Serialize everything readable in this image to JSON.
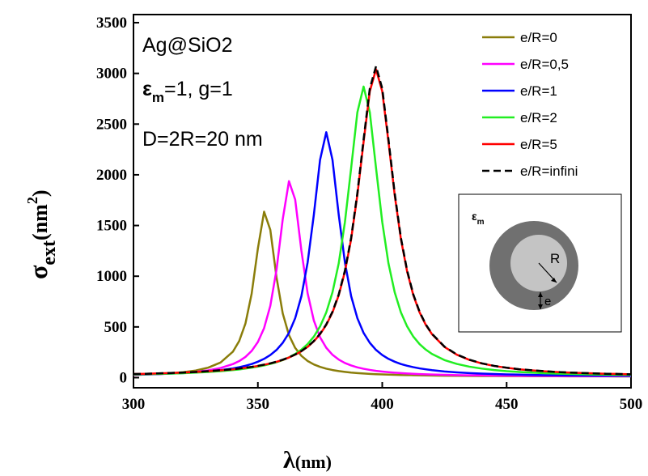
{
  "chart_data": {
    "type": "line",
    "x": [
      300,
      305,
      310,
      315,
      320,
      325,
      330,
      335,
      340,
      342.5,
      345,
      347.5,
      350,
      352.5,
      355,
      357.5,
      360,
      362.5,
      365,
      367.5,
      370,
      372.5,
      375,
      377.5,
      380,
      382.5,
      385,
      387.5,
      390,
      392.5,
      395,
      397.5,
      400,
      402.5,
      405,
      407.5,
      410,
      412.5,
      415,
      417.5,
      420,
      425,
      430,
      435,
      440,
      445,
      450,
      455,
      460,
      465,
      470,
      475,
      480,
      485,
      490,
      495,
      500
    ],
    "series": [
      {
        "name": "e/R=0",
        "color": "#8a7d0a",
        "values": [
          27,
          31,
          36,
          43,
          54,
          70,
          98,
          149,
          257,
          361,
          533,
          827,
          1272,
          1636,
          1457,
          989,
          633,
          419,
          293,
          215,
          164,
          130,
          106,
          88,
          75,
          65,
          57,
          50,
          45,
          41,
          37,
          34,
          32,
          30,
          28,
          26,
          25,
          24,
          23,
          22,
          21,
          19,
          18,
          17,
          16,
          16,
          15,
          15,
          14,
          14,
          14,
          13,
          13,
          13,
          13,
          12,
          12
        ]
      },
      {
        "name": "e/R=0,5",
        "color": "#ff00ff",
        "values": [
          27,
          31,
          35,
          40,
          47,
          57,
          72,
          95,
          134,
          163,
          204,
          263,
          351,
          488,
          708,
          1064,
          1562,
          1937,
          1756,
          1252,
          832,
          563,
          398,
          294,
          225,
          178,
          144,
          120,
          101,
          87,
          76,
          67,
          60,
          54,
          49,
          45,
          41,
          38,
          35,
          33,
          31,
          28,
          25,
          23,
          22,
          20,
          19,
          18,
          17,
          17,
          16,
          16,
          15,
          15,
          14,
          14,
          14
        ]
      },
      {
        "name": "e/R=1",
        "color": "#0000ff",
        "values": [
          30,
          32,
          36,
          40,
          45,
          52,
          61,
          74,
          91,
          103,
          117,
          134,
          157,
          185,
          223,
          273,
          343,
          441,
          586,
          803,
          1135,
          1606,
          2147,
          2420,
          2147,
          1606,
          1135,
          803,
          586,
          441,
          343,
          273,
          223,
          185,
          157,
          134,
          117,
          103,
          91,
          82,
          74,
          61,
          52,
          45,
          40,
          36,
          32,
          30,
          27,
          25,
          24,
          22,
          21,
          20,
          19,
          19,
          18
        ]
      },
      {
        "name": "e/R=2",
        "color": "#22ee22",
        "values": [
          31,
          34,
          37,
          40,
          44,
          50,
          56,
          64,
          75,
          81,
          89,
          98,
          108,
          120,
          135,
          152,
          173,
          200,
          233,
          276,
          331,
          404,
          505,
          643,
          842,
          1126,
          1535,
          2067,
          2616,
          2870,
          2616,
          2067,
          1535,
          1126,
          842,
          643,
          505,
          404,
          331,
          276,
          233,
          173,
          135,
          108,
          89,
          75,
          64,
          56,
          50,
          44,
          40,
          37,
          34,
          31,
          29,
          27,
          26
        ]
      },
      {
        "name": "e/R=5",
        "color": "#ff0000",
        "values": [
          36,
          38,
          42,
          46,
          50,
          56,
          63,
          72,
          82,
          89,
          97,
          105,
          115,
          127,
          140,
          156,
          175,
          198,
          226,
          260,
          303,
          358,
          428,
          520,
          644,
          812,
          1046,
          1366,
          1801,
          2325,
          2823,
          3040,
          2823,
          2325,
          1801,
          1366,
          1046,
          812,
          644,
          520,
          428,
          303,
          226,
          175,
          140,
          115,
          97,
          82,
          72,
          63,
          56,
          50,
          46,
          42,
          38,
          36,
          33
        ]
      },
      {
        "name": "e/R=infini",
        "color": "#000000",
        "dash": true,
        "values": [
          36,
          38,
          42,
          46,
          50,
          56,
          64,
          73,
          83,
          90,
          98,
          106,
          116,
          128,
          141,
          157,
          177,
          200,
          228,
          262,
          306,
          361,
          432,
          525,
          650,
          820,
          1056,
          1379,
          1819,
          2348,
          2851,
          3070,
          2851,
          2348,
          1819,
          1379,
          1056,
          820,
          650,
          525,
          432,
          306,
          228,
          177,
          141,
          116,
          98,
          83,
          73,
          64,
          56,
          50,
          46,
          42,
          38,
          36,
          33
        ]
      }
    ],
    "xlim": [
      300,
      500
    ],
    "xticks": [
      300,
      350,
      400,
      450,
      500
    ],
    "ylim": [
      -100,
      3580
    ],
    "yticks": [
      0,
      500,
      1000,
      1500,
      2000,
      2500,
      3000,
      3500
    ],
    "xlabel": [
      "λ",
      "(nm)"
    ],
    "ylabel": [
      "σ",
      "ext",
      "(nm",
      "2",
      ")"
    ],
    "annotations": [
      "Ag@SiO2",
      [
        "ε",
        "m",
        "=1, g=1"
      ],
      "D=2R=20 nm"
    ],
    "inset": {
      "medium": [
        "ε",
        "m"
      ],
      "radius": "R",
      "shell": "e"
    },
    "legend": "upper right"
  }
}
